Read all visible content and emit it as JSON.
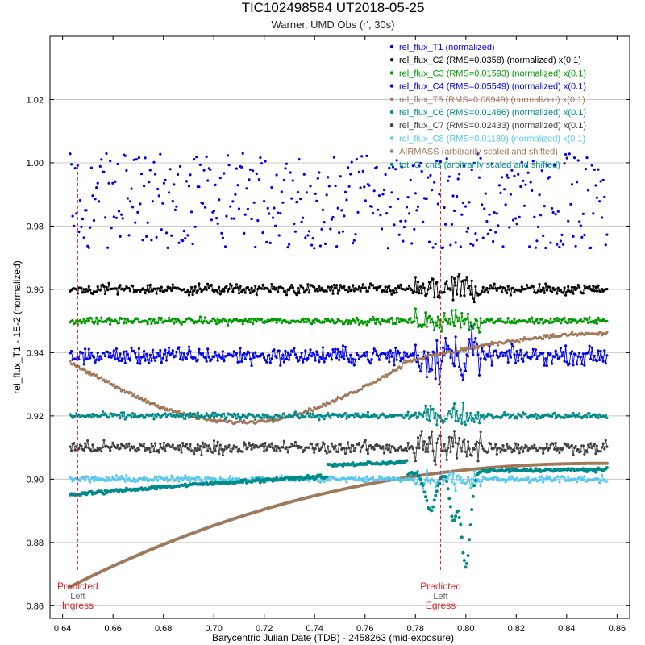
{
  "chart_data": {
    "type": "scatter",
    "title": "TIC102498584 UT2018-05-25",
    "subtitle": "Warner, UMD Obs (r', 30s)",
    "xlabel": "Barycentric Julian Date (TDB) - 2458263 (mid-exposure)",
    "ylabel": "rel_flux_T1 - 1E-2 (normalized)",
    "xlim": [
      0.635,
      0.865
    ],
    "ylim": [
      0.856,
      1.04
    ],
    "x_ticks": [
      "0.64",
      "0.66",
      "0.68",
      "0.70",
      "0.72",
      "0.74",
      "0.76",
      "0.78",
      "0.80",
      "0.82",
      "0.84",
      "0.86"
    ],
    "y_ticks": [
      "0.86",
      "0.88",
      "0.90",
      "0.92",
      "0.94",
      "0.96",
      "0.98",
      "1.00",
      "1.02"
    ],
    "grid": "horizontal",
    "legend_position": "top-right",
    "series": [
      {
        "name": "rel_flux_T1 (normalized)",
        "color": "#0000ee",
        "style": "points",
        "level": 0.988,
        "x_start": 0.643,
        "x_end": 0.856
      },
      {
        "name": "rel_flux_C2 (RMS=0.0358) (normalized) x(0.1)",
        "color": "#000000",
        "style": "points+line",
        "level": 0.96,
        "x_start": 0.643,
        "x_end": 0.856
      },
      {
        "name": "rel_flux_C3 (RMS=0.01593) (normalized) x(0.1)",
        "color": "#009900",
        "style": "points+line",
        "level": 0.95,
        "x_start": 0.643,
        "x_end": 0.856
      },
      {
        "name": "rel_flux_C4 (RMS=0.05549) (normalized) x(0.1)",
        "color": "#0000ee",
        "style": "points+line",
        "level": 0.939,
        "x_start": 0.643,
        "x_end": 0.856
      },
      {
        "name": "rel_flux_T5 (RMS=0.08949) (normalized) x(0.1)",
        "color": "#a0785a",
        "style": "points+line",
        "level": 0.93,
        "x_start": 0.643,
        "x_end": 0.856
      },
      {
        "name": "rel_flux_C6 (RMS=0.01486) (normalized) x(0.1)",
        "color": "#008b8b",
        "style": "points+line",
        "level": 0.92,
        "x_start": 0.643,
        "x_end": 0.856
      },
      {
        "name": "rel_flux_C7 (RMS=0.02433) (normalized) x(0.1)",
        "color": "#404040",
        "style": "points+line",
        "level": 0.91,
        "x_start": 0.643,
        "x_end": 0.856
      },
      {
        "name": "rel_flux_C8 (RMS=0.01139) (normalized) x(0.1)",
        "color": "#55c8f0",
        "style": "points+line",
        "level": 0.9,
        "x_start": 0.643,
        "x_end": 0.856
      },
      {
        "name": "AIRMASS (arbitrarily scaled and shifted)",
        "color": "#a0785a",
        "style": "points",
        "x_start": 0.643,
        "x_end": 0.856,
        "y_start": 0.866,
        "y_end": 0.905
      },
      {
        "name": "tot_C_cnts (arbitrarily scaled and shifted)",
        "color": "#008b8b",
        "style": "points",
        "x_start": 0.643,
        "x_end": 0.856,
        "y_start": 0.895,
        "y_end": 0.903
      }
    ],
    "annotations": [
      {
        "x": 0.646,
        "lines": [
          "Predicted",
          "Left",
          "Ingress"
        ]
      },
      {
        "x": 0.79,
        "lines": [
          "Predicted",
          "Left",
          "Egress"
        ]
      }
    ]
  }
}
